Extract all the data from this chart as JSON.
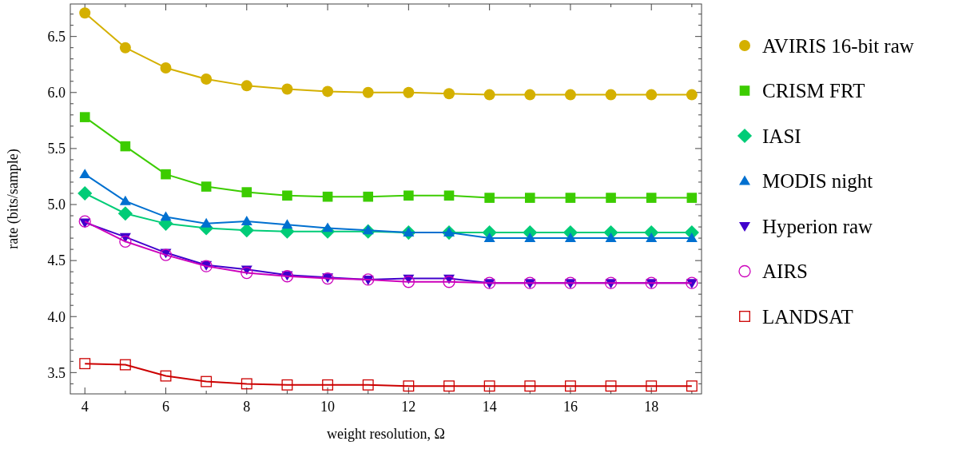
{
  "chart_data": {
    "type": "line",
    "xlabel": "weight resolution, Ω",
    "ylabel": "rate (bits/sample)",
    "x": [
      4,
      5,
      6,
      7,
      8,
      9,
      10,
      11,
      12,
      13,
      14,
      15,
      16,
      17,
      18,
      19
    ],
    "xlim": [
      3.64,
      19.24
    ],
    "ylim": [
      3.31,
      6.79
    ],
    "xticks": [
      4,
      {
        "value": 5,
        "label": null
      },
      6,
      {
        "value": 7,
        "label": null
      },
      8,
      {
        "value": 9,
        "label": null
      },
      10,
      {
        "value": 11,
        "label": null
      },
      12,
      {
        "value": 13,
        "label": null
      },
      14,
      {
        "value": 15,
        "label": null
      },
      16,
      {
        "value": 17,
        "label": null
      },
      18,
      {
        "value": 19,
        "label": null
      }
    ],
    "yticks": [
      {
        "value": 3.4,
        "label": null
      },
      "3.5",
      {
        "value": 3.6,
        "label": null
      },
      {
        "value": 3.7,
        "label": null
      },
      {
        "value": 3.8,
        "label": null
      },
      {
        "value": 3.9,
        "label": null
      },
      {
        "value": 4.0,
        "label": "4.0"
      },
      {
        "value": 4.1,
        "label": null
      },
      {
        "value": 4.2,
        "label": null
      },
      {
        "value": 4.3,
        "label": null
      },
      {
        "value": 4.4,
        "label": null
      },
      4.5,
      {
        "value": 4.6,
        "label": null
      },
      {
        "value": 4.7,
        "label": null
      },
      {
        "value": 4.8,
        "label": null
      },
      {
        "value": 4.9,
        "label": null
      },
      {
        "value": 5.0,
        "label": "5.0"
      },
      {
        "value": 5.1,
        "label": null
      },
      {
        "value": 5.2,
        "label": null
      },
      {
        "value": 5.3,
        "label": null
      },
      {
        "value": 5.4,
        "label": null
      },
      5.5,
      {
        "value": 5.6,
        "label": null
      },
      {
        "value": 5.7,
        "label": null
      },
      {
        "value": 5.8,
        "label": null
      },
      {
        "value": 5.9,
        "label": null
      },
      {
        "value": 6.0,
        "label": "6.0"
      },
      {
        "value": 6.1,
        "label": null
      },
      {
        "value": 6.2,
        "label": null
      },
      {
        "value": 6.3,
        "label": null
      },
      {
        "value": 6.4,
        "label": null
      },
      6.5,
      {
        "value": 6.6,
        "label": null
      },
      {
        "value": 6.7,
        "label": null
      }
    ],
    "grid": false,
    "legend": "right",
    "series": [
      {
        "name": "AVIRIS 16-bit raw",
        "color": "#d4b000",
        "marker": "circle",
        "values": [
          6.71,
          6.4,
          6.22,
          6.12,
          6.06,
          6.03,
          6.01,
          6.0,
          6.0,
          5.99,
          5.98,
          5.98,
          5.98,
          5.98,
          5.98,
          5.98
        ]
      },
      {
        "name": "CRISM FRT",
        "color": "#3ccc00",
        "marker": "square",
        "values": [
          5.78,
          5.52,
          5.27,
          5.16,
          5.11,
          5.08,
          5.07,
          5.07,
          5.08,
          5.08,
          5.06,
          5.06,
          5.06,
          5.06,
          5.06,
          5.06
        ]
      },
      {
        "name": "IASI",
        "color": "#00cc77",
        "marker": "diamond",
        "values": [
          5.1,
          4.92,
          4.83,
          4.79,
          4.77,
          4.76,
          4.76,
          4.76,
          4.75,
          4.75,
          4.75,
          4.75,
          4.75,
          4.75,
          4.75,
          4.75
        ]
      },
      {
        "name": "MODIS night",
        "color": "#0070d0",
        "marker": "triangle",
        "values": [
          5.27,
          5.03,
          4.89,
          4.83,
          4.85,
          4.82,
          4.79,
          4.77,
          4.75,
          4.75,
          4.7,
          4.7,
          4.7,
          4.7,
          4.7,
          4.7
        ]
      },
      {
        "name": "Hyperion raw",
        "color": "#4000cc",
        "marker": "triangle-down",
        "values": [
          4.84,
          4.71,
          4.57,
          4.46,
          4.42,
          4.37,
          4.35,
          4.33,
          4.34,
          4.34,
          4.3,
          4.3,
          4.3,
          4.3,
          4.3,
          4.3
        ]
      },
      {
        "name": "AIRS",
        "color": "#cc00bb",
        "marker": "circle-open",
        "values": [
          4.85,
          4.67,
          4.55,
          4.45,
          4.39,
          4.36,
          4.34,
          4.33,
          4.31,
          4.31,
          4.3,
          4.3,
          4.3,
          4.3,
          4.3,
          4.3
        ]
      },
      {
        "name": "LANDSAT",
        "color": "#cc0000",
        "marker": "square-open",
        "values": [
          3.58,
          3.57,
          3.47,
          3.42,
          3.4,
          3.39,
          3.39,
          3.39,
          3.38,
          3.38,
          3.38,
          3.38,
          3.38,
          3.38,
          3.38,
          3.38
        ]
      }
    ]
  }
}
